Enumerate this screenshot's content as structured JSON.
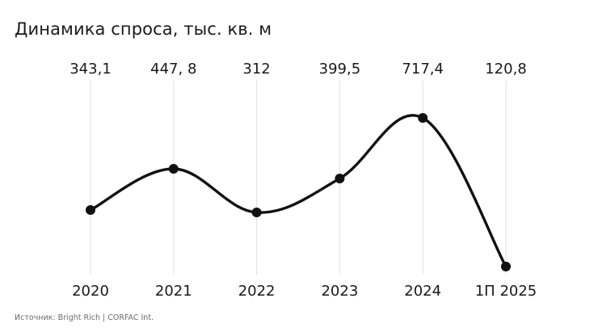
{
  "chart_data": {
    "type": "line",
    "title": "Динамика спроса, тыс. кв. м",
    "categories": [
      "2020",
      "2021",
      "2022",
      "2023",
      "2024",
      "1П 2025"
    ],
    "values": [
      343.1,
      447.8,
      312,
      399.5,
      717.4,
      120.8
    ],
    "data_labels": [
      "343,1",
      "447, 8",
      "312",
      "399,5",
      "717,4",
      "120,8"
    ],
    "xlabel": "",
    "ylabel": "",
    "grid": "vertical",
    "legend": "none",
    "line_color": "#111111",
    "grid_color": "#e4e4e4"
  },
  "source": "Источник: Bright Rich | CORFAC Int."
}
